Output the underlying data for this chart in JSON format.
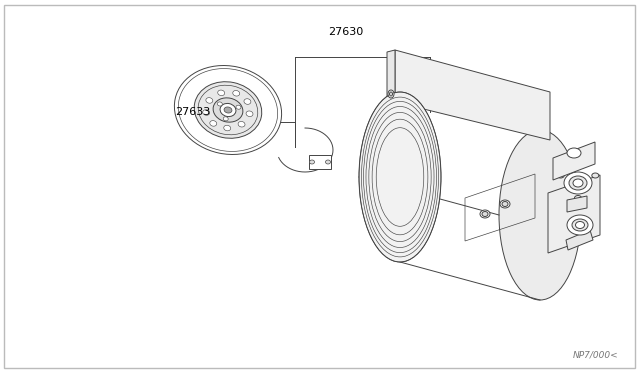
{
  "background_color": "#ffffff",
  "border_color": "#bbbbbb",
  "line_color": "#444444",
  "part_number_27630": "27630",
  "part_number_27633": "27633",
  "watermark": "NP7/000<",
  "lw": 0.7,
  "fig_w": 6.4,
  "fig_h": 3.72,
  "dpi": 100
}
